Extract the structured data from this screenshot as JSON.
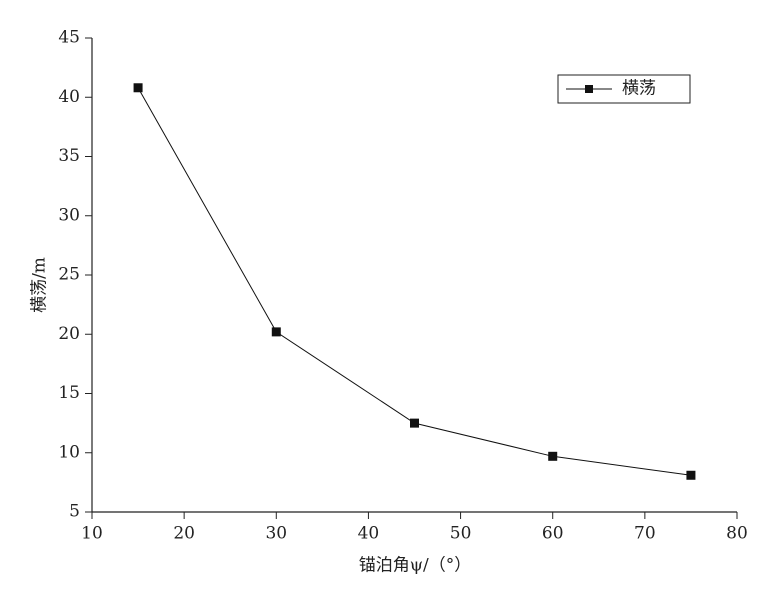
{
  "chart_data": {
    "type": "line",
    "x_label": "锚泊角ψ/（°）",
    "y_label": "横荡/m",
    "x": [
      15,
      30,
      45,
      60,
      75
    ],
    "series": [
      {
        "name": "横荡",
        "color": "#111111",
        "values": [
          40.8,
          20.2,
          12.5,
          9.7,
          8.1
        ]
      }
    ],
    "xlim": [
      10,
      80
    ],
    "xticks": [
      10,
      20,
      30,
      40,
      50,
      60,
      70,
      80
    ],
    "ylim": [
      5,
      45
    ],
    "yticks": [
      5,
      10,
      15,
      20,
      25,
      30,
      35,
      40,
      45
    ],
    "grid": false,
    "legend": "upper right"
  }
}
